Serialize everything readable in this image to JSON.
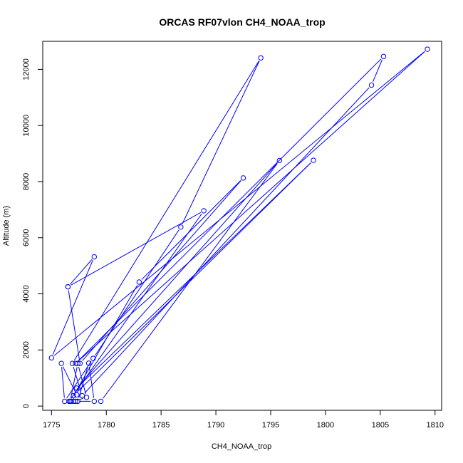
{
  "chart_data": {
    "type": "line",
    "title": "ORCAS RF07vlon CH4_NOAA_trop",
    "xlabel": "CH4_NOAA_trop",
    "ylabel": "Altitude (m)",
    "xlim": [
      1774.2,
      1810.6
    ],
    "ylim": [
      -150,
      13000
    ],
    "xticks": [
      1775,
      1780,
      1785,
      1790,
      1795,
      1800,
      1805,
      1810
    ],
    "yticks": [
      0,
      2000,
      4000,
      6000,
      8000,
      10000,
      12000
    ],
    "grid": false,
    "legend": "none",
    "series_color": "#0000ff",
    "x": [
      1779.5,
      1795.8,
      1777.3,
      1798.9,
      1777.0,
      1783.0,
      1792.5,
      1777.6,
      1776.5,
      1778.9,
      1775.0,
      1809.3,
      1777.2,
      1805.3,
      1804.2,
      1777.8,
      1776.9,
      1794.1,
      1786.8,
      1778.8,
      1776.2,
      1775.9,
      1777.3,
      1776.8,
      1776.7,
      1777.4,
      1778.2,
      1777.0,
      1777.4,
      1778.4,
      1778.9,
      1777.2,
      1776.6,
      1788.9,
      1776.5
    ],
    "y": [
      170,
      8750,
      640,
      8760,
      370,
      4420,
      8130,
      1520,
      4250,
      5320,
      1720,
      12720,
      1520,
      12460,
      11440,
      370,
      1520,
      12410,
      6380,
      1700,
      170,
      1520,
      400,
      170,
      170,
      1520,
      310,
      170,
      170,
      1530,
      170,
      170,
      170,
      6960,
      4250
    ]
  }
}
